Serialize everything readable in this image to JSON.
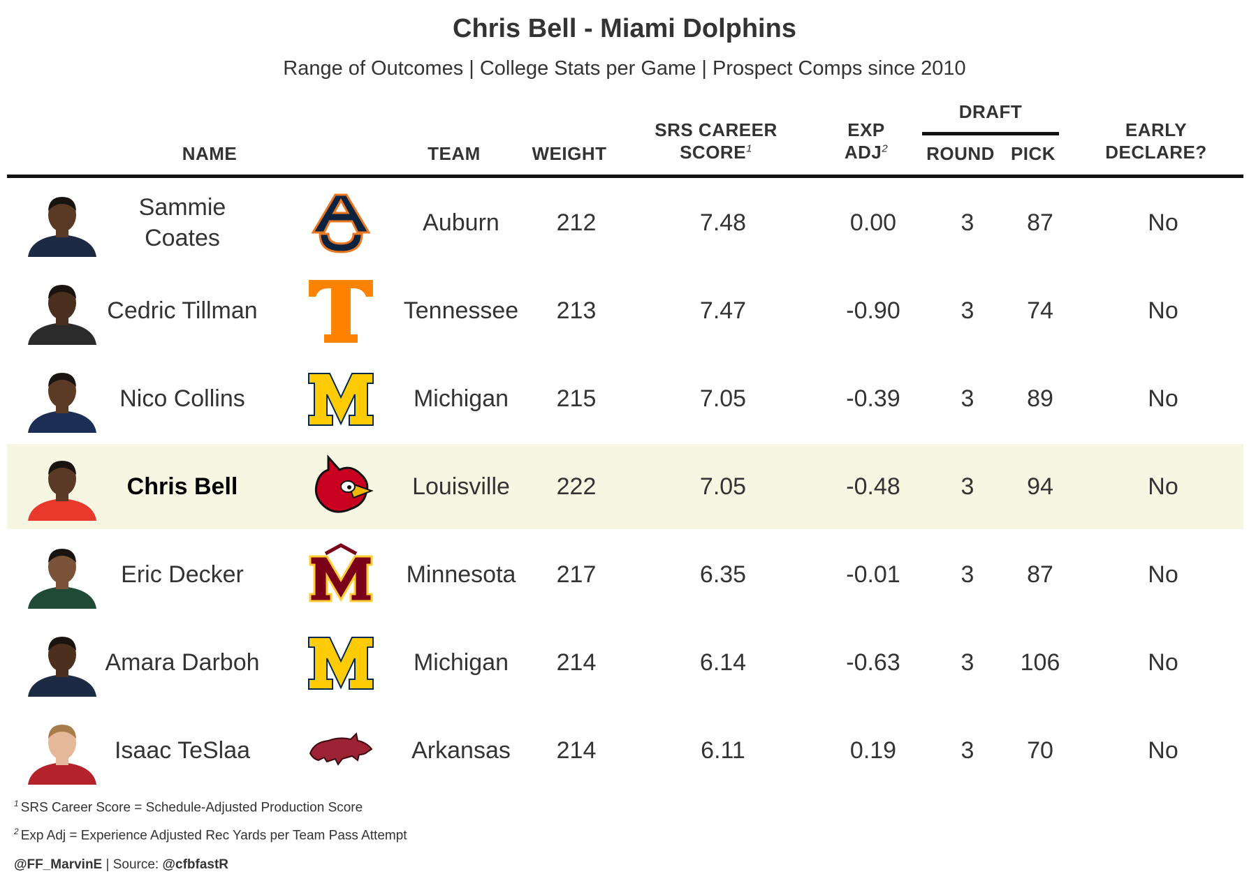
{
  "title": "Chris Bell - Miami Dolphins",
  "subtitle": "Range of Outcomes | College Stats per Game | Prospect Comps since 2010",
  "headers": {
    "name": "NAME",
    "team": "TEAM",
    "weight": "WEIGHT",
    "srs_line1": "SRS CAREER",
    "srs_line2": "SCORE",
    "srs_note": "1",
    "exp_line1": "EXP",
    "exp_line2": "ADJ",
    "exp_note": "2",
    "draft": "DRAFT",
    "round": "ROUND",
    "pick": "PICK",
    "early_line1": "EARLY",
    "early_line2": "DECLARE?"
  },
  "rows": [
    {
      "name": "Sammie Coates",
      "team": "Auburn",
      "weight": "212",
      "srs": "7.48",
      "exp_adj": "0.00",
      "round": "3",
      "pick": "87",
      "early": "No",
      "logo": "auburn-logo",
      "highlight": false
    },
    {
      "name": "Cedric Tillman",
      "team": "Tennessee",
      "weight": "213",
      "srs": "7.47",
      "exp_adj": "-0.90",
      "round": "3",
      "pick": "74",
      "early": "No",
      "logo": "tennessee-logo",
      "highlight": false
    },
    {
      "name": "Nico Collins",
      "team": "Michigan",
      "weight": "215",
      "srs": "7.05",
      "exp_adj": "-0.39",
      "round": "3",
      "pick": "89",
      "early": "No",
      "logo": "michigan-logo",
      "highlight": false
    },
    {
      "name": "Chris Bell",
      "team": "Louisville",
      "weight": "222",
      "srs": "7.05",
      "exp_adj": "-0.48",
      "round": "3",
      "pick": "94",
      "early": "No",
      "logo": "louisville-logo",
      "highlight": true
    },
    {
      "name": "Eric Decker",
      "team": "Minnesota",
      "weight": "217",
      "srs": "6.35",
      "exp_adj": "-0.01",
      "round": "3",
      "pick": "87",
      "early": "No",
      "logo": "minnesota-logo",
      "highlight": false
    },
    {
      "name": "Amara Darboh",
      "team": "Michigan",
      "weight": "214",
      "srs": "6.14",
      "exp_adj": "-0.63",
      "round": "3",
      "pick": "106",
      "early": "No",
      "logo": "michigan-logo",
      "highlight": false
    },
    {
      "name": "Isaac TeSlaa",
      "team": "Arkansas",
      "weight": "214",
      "srs": "6.11",
      "exp_adj": "0.19",
      "round": "3",
      "pick": "70",
      "early": "No",
      "logo": "arkansas-logo",
      "highlight": false
    }
  ],
  "colors": {
    "highlight_row": "#f7f6e3",
    "auburn_navy": "#0c2340",
    "auburn_orange": "#e87722",
    "tennessee_orange": "#ff8200",
    "michigan_maize": "#ffcb05",
    "michigan_blue": "#00274c",
    "louisville_red": "#c9001f",
    "minnesota_maroon": "#7a0019",
    "minnesota_gold": "#ffcc33",
    "arkansas_red": "#9d2235"
  },
  "footnotes": [
    {
      "mark": "1",
      "text": "SRS Career Score = Schedule-Adjusted Production Score"
    },
    {
      "mark": "2",
      "text": "Exp Adj = Experience Adjusted Rec Yards per Team Pass Attempt"
    }
  ],
  "credit": {
    "handle": "@FF_MarvinE",
    "separator": " | Source: ",
    "source": "@cfbfastR"
  }
}
